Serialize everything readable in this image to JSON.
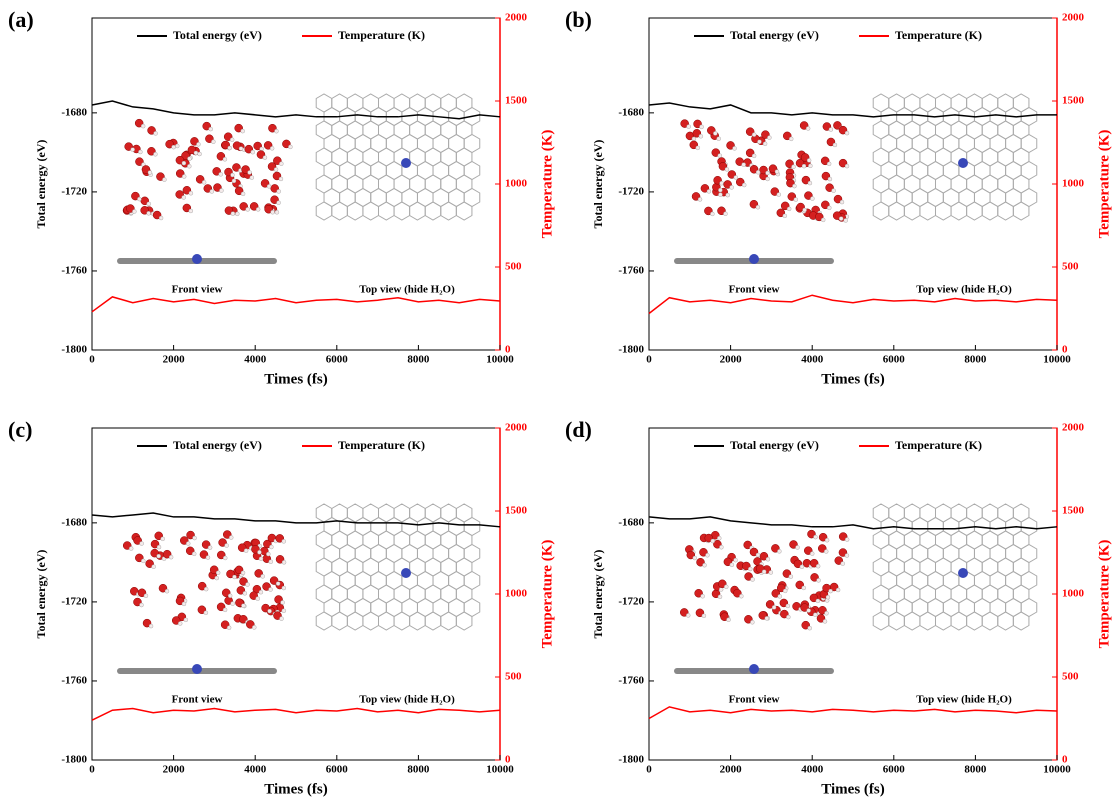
{
  "chart_data": [
    {
      "type": "line",
      "title": "(a)",
      "x_label": "Times (fs)",
      "y_label": "Total energy (eV)",
      "y2_label": "Temperature (K)",
      "annotations": [
        "Front view",
        "Top view (hide H₂O)"
      ],
      "x": [
        0,
        500,
        1000,
        1500,
        2000,
        2500,
        3000,
        3500,
        4000,
        4500,
        5000,
        5500,
        6000,
        6500,
        7000,
        7500,
        8000,
        8500,
        9000,
        9500,
        10000
      ],
      "series": [
        {
          "name": "Total energy (eV)",
          "color": "#000000",
          "values": [
            -1676,
            -1674,
            -1677,
            -1678,
            -1680,
            -1681,
            -1681,
            -1680,
            -1681,
            -1682,
            -1681,
            -1682,
            -1682,
            -1681,
            -1682,
            -1682,
            -1681,
            -1682,
            -1683,
            -1681,
            -1682
          ]
        },
        {
          "name": "Temperature (K)",
          "color": "#ff0000",
          "axis": "y2",
          "values": [
            230,
            320,
            285,
            310,
            290,
            305,
            280,
            300,
            295,
            310,
            285,
            300,
            305,
            290,
            300,
            315,
            290,
            300,
            285,
            305,
            295
          ]
        }
      ],
      "xlim": [
        0,
        10000
      ],
      "xticks": [
        0,
        2000,
        4000,
        6000,
        8000,
        10000
      ],
      "ylim": [
        -1800,
        -1632
      ],
      "yticks": [
        -1800,
        -1760,
        -1720,
        -1680
      ],
      "y2lim": [
        0,
        2000
      ],
      "y2ticks": [
        0,
        500,
        1000,
        1500,
        2000
      ]
    },
    {
      "type": "line",
      "title": "(b)",
      "x_label": "Times (fs)",
      "y_label": "Total energy (eV)",
      "y2_label": "Temperature (K)",
      "annotations": [
        "Front view",
        "Top view (hide H₂O)"
      ],
      "x": [
        0,
        500,
        1000,
        1500,
        2000,
        2500,
        3000,
        3500,
        4000,
        4500,
        5000,
        5500,
        6000,
        6500,
        7000,
        7500,
        8000,
        8500,
        9000,
        9500,
        10000
      ],
      "series": [
        {
          "name": "Total energy (eV)",
          "color": "#000000",
          "values": [
            -1676,
            -1675,
            -1677,
            -1678,
            -1676,
            -1680,
            -1680,
            -1681,
            -1680,
            -1681,
            -1681,
            -1682,
            -1681,
            -1681,
            -1682,
            -1681,
            -1682,
            -1681,
            -1682,
            -1681,
            -1681
          ]
        },
        {
          "name": "Temperature (K)",
          "color": "#ff0000",
          "axis": "y2",
          "values": [
            220,
            315,
            290,
            300,
            285,
            310,
            295,
            290,
            330,
            300,
            285,
            305,
            295,
            300,
            290,
            310,
            295,
            300,
            290,
            305,
            300
          ]
        }
      ],
      "xlim": [
        0,
        10000
      ],
      "xticks": [
        0,
        2000,
        4000,
        6000,
        8000,
        10000
      ],
      "ylim": [
        -1800,
        -1632
      ],
      "yticks": [
        -1800,
        -1760,
        -1720,
        -1680
      ],
      "y2lim": [
        0,
        2000
      ],
      "y2ticks": [
        0,
        500,
        1000,
        1500,
        2000
      ]
    },
    {
      "type": "line",
      "title": "(c)",
      "x_label": "Times (fs)",
      "y_label": "Total energy (eV)",
      "y2_label": "Temperature (K)",
      "annotations": [
        "Front view",
        "Top view (hide H₂O)"
      ],
      "x": [
        0,
        500,
        1000,
        1500,
        2000,
        2500,
        3000,
        3500,
        4000,
        4500,
        5000,
        5500,
        6000,
        6500,
        7000,
        7500,
        8000,
        8500,
        9000,
        9500,
        10000
      ],
      "series": [
        {
          "name": "Total energy (eV)",
          "color": "#000000",
          "values": [
            -1676,
            -1677,
            -1676,
            -1675,
            -1677,
            -1677,
            -1678,
            -1678,
            -1679,
            -1679,
            -1680,
            -1680,
            -1679,
            -1680,
            -1680,
            -1680,
            -1681,
            -1680,
            -1681,
            -1681,
            -1682
          ]
        },
        {
          "name": "Temperature (K)",
          "color": "#ff0000",
          "axis": "y2",
          "values": [
            240,
            300,
            310,
            285,
            300,
            295,
            310,
            290,
            300,
            305,
            285,
            300,
            295,
            310,
            290,
            300,
            285,
            305,
            300,
            290,
            300
          ]
        }
      ],
      "xlim": [
        0,
        10000
      ],
      "xticks": [
        0,
        2000,
        4000,
        6000,
        8000,
        10000
      ],
      "ylim": [
        -1800,
        -1632
      ],
      "yticks": [
        -1800,
        -1760,
        -1720,
        -1680
      ],
      "y2lim": [
        0,
        2000
      ],
      "y2ticks": [
        0,
        500,
        1000,
        1500,
        2000
      ]
    },
    {
      "type": "line",
      "title": "(d)",
      "x_label": "Times (fs)",
      "y_label": "Total energy (eV)",
      "y2_label": "Temperature (K)",
      "annotations": [
        "Front view",
        "Top view (hide H₂O)"
      ],
      "x": [
        0,
        500,
        1000,
        1500,
        2000,
        2500,
        3000,
        3500,
        4000,
        4500,
        5000,
        5500,
        6000,
        6500,
        7000,
        7500,
        8000,
        8500,
        9000,
        9500,
        10000
      ],
      "series": [
        {
          "name": "Total energy (eV)",
          "color": "#000000",
          "values": [
            -1677,
            -1678,
            -1678,
            -1677,
            -1679,
            -1680,
            -1681,
            -1681,
            -1682,
            -1682,
            -1681,
            -1683,
            -1682,
            -1683,
            -1683,
            -1683,
            -1682,
            -1683,
            -1682,
            -1683,
            -1682
          ]
        },
        {
          "name": "Temperature (K)",
          "color": "#ff0000",
          "axis": "y2",
          "values": [
            250,
            320,
            290,
            300,
            285,
            305,
            295,
            300,
            290,
            305,
            300,
            290,
            300,
            295,
            305,
            290,
            300,
            295,
            285,
            300,
            295
          ]
        }
      ],
      "xlim": [
        0,
        10000
      ],
      "xticks": [
        0,
        2000,
        4000,
        6000,
        8000,
        10000
      ],
      "ylim": [
        -1800,
        -1632
      ],
      "yticks": [
        -1800,
        -1760,
        -1720,
        -1680
      ],
      "y2lim": [
        0,
        2000
      ],
      "y2ticks": [
        0,
        500,
        1000,
        1500,
        2000
      ]
    }
  ]
}
